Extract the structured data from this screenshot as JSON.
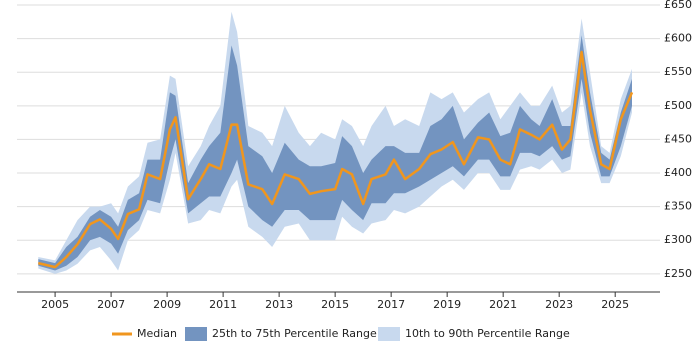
{
  "chart_data": {
    "type": "band-line",
    "x": [
      2004.4,
      2005,
      2005.4,
      2005.8,
      2006.25,
      2006.6,
      2007,
      2007.25,
      2007.6,
      2008,
      2008.3,
      2008.75,
      2009.1,
      2009.3,
      2009.75,
      2010.2,
      2010.5,
      2010.9,
      2011.3,
      2011.5,
      2011.9,
      2012.4,
      2012.75,
      2013.2,
      2013.7,
      2014.1,
      2014.5,
      2015,
      2015.25,
      2015.6,
      2016,
      2016.3,
      2016.8,
      2017.1,
      2017.5,
      2018,
      2018.4,
      2018.8,
      2019.2,
      2019.6,
      2020.1,
      2020.5,
      2020.9,
      2021.25,
      2021.6,
      2022,
      2022.3,
      2022.75,
      2023.1,
      2023.4,
      2023.8,
      2024.1,
      2024.5,
      2024.8,
      2025.2,
      2025.6
    ],
    "series": [
      {
        "name": "Median",
        "color": "#f0961e",
        "values": [
          266,
          260,
          275,
          294,
          324,
          331,
          317,
          302,
          339,
          346,
          398,
          391,
          465,
          483,
          361,
          391,
          413,
          406,
          472,
          472,
          383,
          376,
          354,
          398,
          391,
          369,
          373,
          376,
          406,
          398,
          354,
          391,
          398,
          420,
          391,
          406,
          428,
          435,
          446,
          413,
          453,
          450,
          420,
          413,
          465,
          457,
          450,
          472,
          435,
          450,
          580,
          494,
          413,
          406,
          480,
          520
        ]
      },
      {
        "name": "25th to 75th Percentile Range",
        "color": "#7394c0",
        "low": [
          262,
          255,
          262,
          275,
          300,
          305,
          295,
          280,
          315,
          330,
          360,
          355,
          420,
          450,
          340,
          355,
          365,
          365,
          400,
          420,
          350,
          330,
          320,
          345,
          345,
          330,
          330,
          330,
          360,
          345,
          330,
          355,
          355,
          370,
          370,
          380,
          390,
          400,
          410,
          395,
          420,
          420,
          395,
          395,
          430,
          430,
          425,
          440,
          420,
          425,
          540,
          460,
          395,
          395,
          440,
          500
        ],
        "high": [
          272,
          266,
          290,
          305,
          335,
          345,
          335,
          320,
          360,
          370,
          420,
          420,
          520,
          515,
          385,
          420,
          440,
          460,
          590,
          560,
          440,
          425,
          400,
          445,
          420,
          410,
          410,
          415,
          455,
          440,
          400,
          420,
          440,
          440,
          430,
          430,
          470,
          480,
          500,
          450,
          475,
          490,
          455,
          460,
          500,
          480,
          470,
          510,
          470,
          470,
          605,
          520,
          430,
          420,
          490,
          540
        ]
      },
      {
        "name": "10th to 90th Percentile Range",
        "color": "#c8d9ee",
        "low": [
          258,
          250,
          255,
          265,
          285,
          290,
          270,
          255,
          300,
          315,
          345,
          340,
          390,
          430,
          325,
          330,
          345,
          340,
          380,
          390,
          320,
          305,
          290,
          320,
          325,
          300,
          300,
          300,
          335,
          320,
          310,
          325,
          330,
          345,
          340,
          350,
          365,
          380,
          390,
          375,
          400,
          400,
          375,
          375,
          405,
          410,
          405,
          420,
          400,
          405,
          520,
          440,
          385,
          385,
          425,
          490
        ],
        "high": [
          275,
          270,
          300,
          330,
          350,
          350,
          355,
          340,
          380,
          395,
          445,
          450,
          545,
          540,
          410,
          440,
          470,
          500,
          640,
          610,
          470,
          460,
          440,
          500,
          460,
          440,
          460,
          450,
          480,
          470,
          440,
          470,
          500,
          470,
          480,
          470,
          520,
          510,
          520,
          490,
          510,
          520,
          480,
          500,
          520,
          500,
          500,
          530,
          490,
          500,
          630,
          550,
          440,
          430,
          510,
          555
        ]
      }
    ],
    "xlim": [
      2003.64,
      2026.6
    ],
    "ylim": [
      223,
      650
    ],
    "xticks": [
      2005,
      2007,
      2009,
      2011,
      2013,
      2015,
      2017,
      2019,
      2021,
      2023,
      2025
    ],
    "yticks": [
      {
        "value": 250,
        "label": "£250"
      },
      {
        "value": 300,
        "label": "£300"
      },
      {
        "value": 350,
        "label": "£350"
      },
      {
        "value": 400,
        "label": "£400"
      },
      {
        "value": 450,
        "label": "£450"
      },
      {
        "value": 500,
        "label": "£500"
      },
      {
        "value": 550,
        "label": "£550"
      },
      {
        "value": 600,
        "label": "£600"
      },
      {
        "value": 650,
        "label": "£650"
      }
    ],
    "grid": true
  }
}
